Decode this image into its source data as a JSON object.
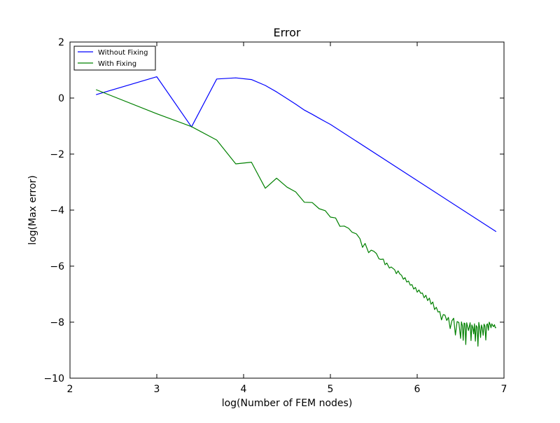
{
  "chart_data": {
    "type": "line",
    "title": "Error",
    "xlabel": "log(Number of FEM nodes)",
    "ylabel": "log(Max error)",
    "xlim": [
      2,
      7
    ],
    "ylim": [
      -10,
      2
    ],
    "xticks": [
      2,
      3,
      4,
      5,
      6,
      7
    ],
    "yticks": [
      -10,
      -8,
      -6,
      -4,
      -2,
      0,
      2
    ],
    "xtick_labels": [
      "2",
      "3",
      "4",
      "5",
      "6",
      "7"
    ],
    "ytick_labels": [
      "−10",
      "−8",
      "−6",
      "−4",
      "−2",
      "0",
      "2"
    ],
    "grid": false,
    "legend_position": "top-left",
    "series": [
      {
        "name": "Without Fixing",
        "color": "#0000ff",
        "x": [
          2.3,
          3.0,
          3.4,
          3.69,
          3.91,
          4.09,
          4.25,
          4.38,
          4.5,
          4.6,
          4.7,
          4.79,
          4.87,
          4.94,
          5.0,
          6.91
        ],
        "y": [
          0.12,
          0.76,
          -1.03,
          0.68,
          0.72,
          0.66,
          0.45,
          0.22,
          -0.02,
          -0.22,
          -0.43,
          -0.58,
          -0.72,
          -0.84,
          -0.94,
          -4.77
        ]
      },
      {
        "name": "With Fixing",
        "color": "#008000",
        "x": [
          2.3,
          3.0,
          3.4,
          3.69,
          3.91,
          4.09,
          4.25,
          4.38,
          4.5,
          4.6,
          4.7,
          4.79,
          4.87,
          4.94,
          5.0,
          5.06,
          5.11,
          5.16,
          5.21,
          5.25,
          5.3,
          5.34,
          5.37,
          5.4,
          5.44,
          5.47,
          5.5,
          5.53,
          5.56,
          5.58,
          5.61,
          5.63,
          5.65,
          5.68,
          5.7,
          5.72,
          5.74,
          5.76,
          5.78,
          5.8,
          5.82,
          5.84,
          5.86,
          5.88,
          5.9,
          5.92,
          5.94,
          5.96,
          5.98,
          6.0,
          6.02,
          6.04,
          6.06,
          6.08,
          6.1,
          6.12,
          6.14,
          6.16,
          6.18,
          6.2,
          6.22,
          6.24,
          6.26,
          6.28,
          6.3,
          6.32,
          6.34,
          6.36,
          6.38,
          6.4,
          6.42,
          6.44,
          6.46,
          6.48,
          6.5,
          6.51,
          6.52,
          6.53,
          6.54,
          6.55,
          6.56,
          6.57,
          6.58,
          6.59,
          6.6,
          6.61,
          6.62,
          6.63,
          6.64,
          6.65,
          6.66,
          6.67,
          6.68,
          6.69,
          6.7,
          6.71,
          6.72,
          6.73,
          6.74,
          6.75,
          6.76,
          6.77,
          6.78,
          6.79,
          6.8,
          6.81,
          6.82,
          6.83,
          6.84,
          6.85,
          6.86,
          6.87,
          6.88,
          6.89,
          6.9,
          6.91
        ],
        "y": [
          0.3,
          -0.56,
          -1.02,
          -1.5,
          -2.35,
          -2.29,
          -3.22,
          -2.86,
          -3.18,
          -3.35,
          -3.72,
          -3.73,
          -3.95,
          -4.02,
          -4.25,
          -4.28,
          -4.58,
          -4.57,
          -4.65,
          -4.79,
          -4.85,
          -5.02,
          -5.33,
          -5.19,
          -5.52,
          -5.43,
          -5.47,
          -5.55,
          -5.74,
          -5.76,
          -5.75,
          -5.95,
          -5.89,
          -6.07,
          -6.03,
          -6.08,
          -6.13,
          -6.27,
          -6.17,
          -6.28,
          -6.33,
          -6.47,
          -6.41,
          -6.57,
          -6.53,
          -6.68,
          -6.66,
          -6.82,
          -6.76,
          -6.93,
          -6.85,
          -6.97,
          -6.96,
          -7.13,
          -7.04,
          -7.23,
          -7.14,
          -7.36,
          -7.28,
          -7.55,
          -7.47,
          -7.64,
          -7.62,
          -7.92,
          -7.73,
          -7.75,
          -7.94,
          -7.83,
          -8.23,
          -7.95,
          -7.86,
          -8.46,
          -7.98,
          -8.01,
          -8.58,
          -7.99,
          -8.12,
          -8.65,
          -8.03,
          -8.05,
          -8.8,
          -8.02,
          -8.15,
          -8.3,
          -8.17,
          -8.02,
          -8.66,
          -8.1,
          -8.19,
          -8.42,
          -8.06,
          -8.68,
          -8.12,
          -8.18,
          -8.86,
          -8.01,
          -8.2,
          -8.55,
          -8.1,
          -8.22,
          -8.47,
          -8.07,
          -8.14,
          -8.64,
          -8.1,
          -8.06,
          -8.29,
          -8.0,
          -8.08,
          -8.2,
          -8.06,
          -8.12,
          -8.16,
          -8.09,
          -8.2,
          -8.19
        ]
      }
    ]
  }
}
